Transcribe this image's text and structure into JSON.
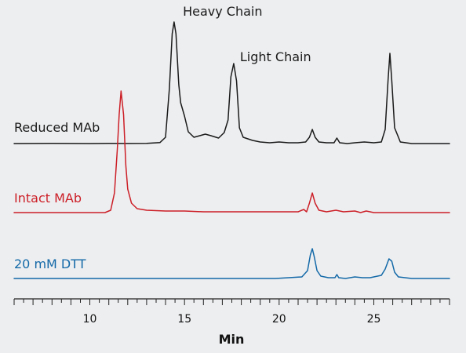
{
  "chart_data": {
    "type": "line",
    "xlabel": "Min",
    "xlim": [
      6,
      29
    ],
    "x_ticks": [
      10,
      15,
      20,
      25
    ],
    "minor_tick_step": 0.5,
    "yaxis": "none",
    "grid": false,
    "legend": "inline-left",
    "annotations": [
      {
        "text": "Heavy Chain",
        "x": 14.5,
        "series": "Reduced MAb"
      },
      {
        "text": "Light Chain",
        "x": 17.6,
        "series": "Reduced MAb"
      }
    ],
    "series": [
      {
        "name": "Reduced MAb",
        "color": "#1a1a1a",
        "points": [
          [
            6,
            0
          ],
          [
            8,
            0.2
          ],
          [
            9,
            0.1
          ],
          [
            10,
            0
          ],
          [
            11,
            0.2
          ],
          [
            12,
            0.1
          ],
          [
            13,
            0.3
          ],
          [
            13.7,
            1.2
          ],
          [
            14.0,
            8
          ],
          [
            14.2,
            70
          ],
          [
            14.35,
            140
          ],
          [
            14.45,
            155
          ],
          [
            14.55,
            140
          ],
          [
            14.7,
            75
          ],
          [
            14.8,
            52
          ],
          [
            15.0,
            35
          ],
          [
            15.2,
            15
          ],
          [
            15.5,
            8
          ],
          [
            15.8,
            10
          ],
          [
            16.1,
            12
          ],
          [
            16.4,
            10
          ],
          [
            16.8,
            7
          ],
          [
            17.1,
            14
          ],
          [
            17.3,
            30
          ],
          [
            17.45,
            85
          ],
          [
            17.6,
            102
          ],
          [
            17.75,
            80
          ],
          [
            17.9,
            20
          ],
          [
            18.1,
            8
          ],
          [
            18.6,
            4
          ],
          [
            19.0,
            2
          ],
          [
            19.5,
            1
          ],
          [
            20.0,
            2
          ],
          [
            20.5,
            1
          ],
          [
            21.0,
            1
          ],
          [
            21.4,
            2
          ],
          [
            21.6,
            8
          ],
          [
            21.75,
            18
          ],
          [
            21.9,
            8
          ],
          [
            22.1,
            2
          ],
          [
            22.5,
            1
          ],
          [
            22.9,
            1
          ],
          [
            23.05,
            7
          ],
          [
            23.2,
            1
          ],
          [
            23.6,
            0
          ],
          [
            24.0,
            1
          ],
          [
            24.5,
            2
          ],
          [
            25.0,
            1
          ],
          [
            25.4,
            2
          ],
          [
            25.6,
            18
          ],
          [
            25.75,
            80
          ],
          [
            25.85,
            115
          ],
          [
            25.95,
            80
          ],
          [
            26.1,
            20
          ],
          [
            26.4,
            2
          ],
          [
            27.0,
            0
          ],
          [
            28.0,
            0
          ],
          [
            29,
            0
          ]
        ]
      },
      {
        "name": "Intact MAb",
        "color": "#cc1f27",
        "points": [
          [
            6,
            0
          ],
          [
            8,
            0
          ],
          [
            10,
            0
          ],
          [
            10.8,
            0
          ],
          [
            11.1,
            3
          ],
          [
            11.3,
            25
          ],
          [
            11.45,
            80
          ],
          [
            11.55,
            125
          ],
          [
            11.65,
            155
          ],
          [
            11.78,
            125
          ],
          [
            11.9,
            60
          ],
          [
            12.0,
            30
          ],
          [
            12.2,
            12
          ],
          [
            12.5,
            5
          ],
          [
            13,
            3
          ],
          [
            14,
            2
          ],
          [
            15,
            2
          ],
          [
            16,
            1
          ],
          [
            18,
            1
          ],
          [
            20,
            1
          ],
          [
            21,
            1
          ],
          [
            21.3,
            4
          ],
          [
            21.45,
            1
          ],
          [
            21.6,
            12
          ],
          [
            21.75,
            25
          ],
          [
            21.9,
            12
          ],
          [
            22.1,
            3
          ],
          [
            22.5,
            1
          ],
          [
            23.0,
            3
          ],
          [
            23.4,
            1
          ],
          [
            24.0,
            2
          ],
          [
            24.3,
            0
          ],
          [
            24.6,
            2
          ],
          [
            25.0,
            0
          ],
          [
            26,
            0
          ],
          [
            29,
            0
          ]
        ]
      },
      {
        "name": "20 mM DTT",
        "color": "#1369a8",
        "points": [
          [
            6,
            0
          ],
          [
            10,
            0
          ],
          [
            15,
            0
          ],
          [
            19.8,
            0
          ],
          [
            20.5,
            1
          ],
          [
            21.2,
            2
          ],
          [
            21.5,
            10
          ],
          [
            21.65,
            30
          ],
          [
            21.75,
            38
          ],
          [
            21.85,
            28
          ],
          [
            22.0,
            10
          ],
          [
            22.2,
            3
          ],
          [
            22.6,
            1
          ],
          [
            22.95,
            1
          ],
          [
            23.05,
            5
          ],
          [
            23.15,
            1
          ],
          [
            23.5,
            0
          ],
          [
            24.0,
            2
          ],
          [
            24.4,
            1
          ],
          [
            24.8,
            1
          ],
          [
            25.4,
            4
          ],
          [
            25.6,
            12
          ],
          [
            25.8,
            25
          ],
          [
            25.95,
            22
          ],
          [
            26.1,
            8
          ],
          [
            26.3,
            2
          ],
          [
            27,
            0
          ],
          [
            28,
            0
          ],
          [
            29,
            0
          ]
        ]
      }
    ]
  }
}
